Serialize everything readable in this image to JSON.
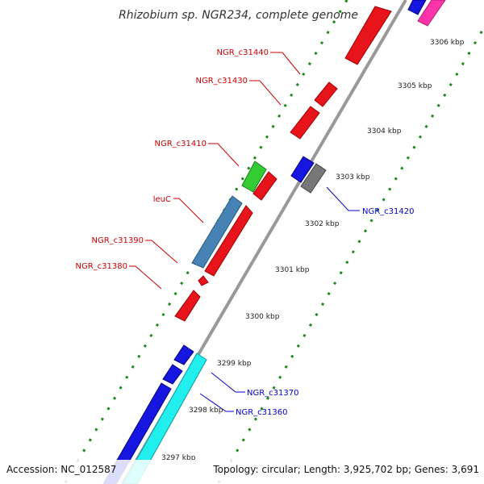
{
  "title": "Rhizobium sp. NGR234, complete genome",
  "footer": {
    "accession": "Accession: NC_012587",
    "topology": "Topology: circular; Length: 3,925,702 bp; Genes: 3,691"
  },
  "ticks": [
    "3297 kbp",
    "3298 kbp",
    "3299 kbp",
    "3300 kbp",
    "3301 kbp",
    "3302 kbp",
    "3303 kbp",
    "3304 kbp",
    "3305 kbp",
    "3306 kbp"
  ],
  "gene_labels_red": [
    "NGR_c31440",
    "NGR_c31430",
    "NGR_c31410",
    "leuC",
    "NGR_c31390",
    "NGR_c31380"
  ],
  "gene_labels_blue": [
    "NGR_c31420",
    "NGR_c31370",
    "NGR_c31360"
  ],
  "colors": {
    "forward": "#e8141c",
    "reverse": "#1616e0",
    "cyan": "#22eeee",
    "green": "#33cc33",
    "steel": "#4682b4",
    "gray": "#777777",
    "magenta": "#ff33aa",
    "label_red": "#cc0000",
    "label_blue": "#0000cc",
    "dots": "#1a8a1a",
    "backbone": "#999999"
  }
}
